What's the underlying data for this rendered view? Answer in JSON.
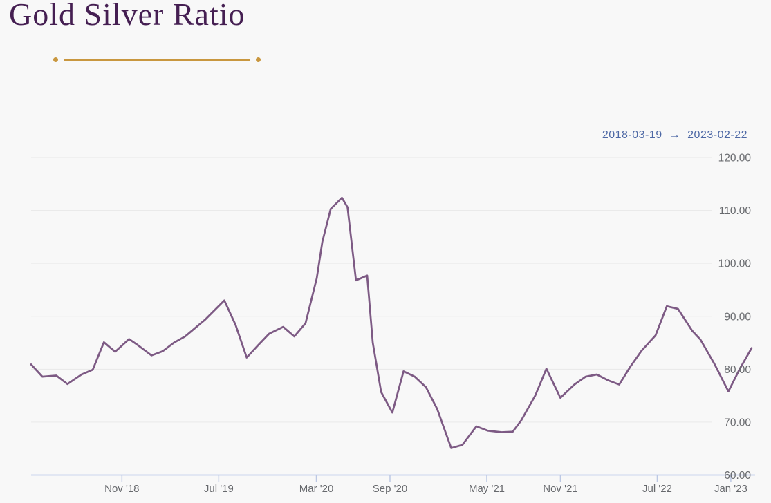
{
  "page": {
    "title": "Gold Silver Ratio"
  },
  "date_range": {
    "start": "2018-03-19",
    "arrow": "→",
    "end": "2023-02-22"
  },
  "colors": {
    "title": "#451f52",
    "divider_gold": "#c9973f",
    "date_blue": "#4d68a5",
    "line_purple": "#7d5a84",
    "grid": "#e9e9e9",
    "axis_blue": "#ccd6ee",
    "tick_blue": "#bcc8e4",
    "label_gray": "#67696d"
  },
  "chart_data": {
    "type": "line",
    "title": "Gold Silver Ratio",
    "xlabel": "",
    "ylabel": "",
    "ylim": [
      60,
      120
    ],
    "x_range": [
      "2018-03-19",
      "2023-02-22"
    ],
    "grid": "horizontal",
    "legend": "none",
    "y_ticks": [
      "120.00",
      "110.00",
      "100.00",
      "90.00",
      "80.00",
      "70.00",
      "60.00"
    ],
    "x_ticks": [
      {
        "label": "Nov '18",
        "date": "2018-11-01"
      },
      {
        "label": "Jul '19",
        "date": "2019-07-01"
      },
      {
        "label": "Mar '20",
        "date": "2020-03-01"
      },
      {
        "label": "Sep '20",
        "date": "2020-09-01"
      },
      {
        "label": "May '21",
        "date": "2021-05-01"
      },
      {
        "label": "Nov '21",
        "date": "2021-11-01"
      },
      {
        "label": "Jul '22",
        "date": "2022-07-01"
      },
      {
        "label": "Jan '23",
        "date": "2023-01-01"
      }
    ],
    "series": [
      {
        "name": "Gold Silver Ratio",
        "color": "#7d5a84",
        "points": [
          [
            "2018-03-19",
            80.9
          ],
          [
            "2018-04-16",
            78.6
          ],
          [
            "2018-05-21",
            78.8
          ],
          [
            "2018-06-18",
            77.2
          ],
          [
            "2018-07-23",
            79.0
          ],
          [
            "2018-08-20",
            79.9
          ],
          [
            "2018-09-17",
            85.1
          ],
          [
            "2018-10-15",
            83.3
          ],
          [
            "2018-11-19",
            85.7
          ],
          [
            "2018-12-10",
            84.6
          ],
          [
            "2019-01-14",
            82.6
          ],
          [
            "2019-02-11",
            83.4
          ],
          [
            "2019-03-11",
            85.0
          ],
          [
            "2019-04-08",
            86.2
          ],
          [
            "2019-05-27",
            89.3
          ],
          [
            "2019-07-15",
            93.0
          ],
          [
            "2019-08-12",
            88.4
          ],
          [
            "2019-09-09",
            82.2
          ],
          [
            "2019-10-07",
            84.5
          ],
          [
            "2019-11-04",
            86.7
          ],
          [
            "2019-12-09",
            88.0
          ],
          [
            "2020-01-06",
            86.2
          ],
          [
            "2020-02-03",
            88.7
          ],
          [
            "2020-03-02",
            97.2
          ],
          [
            "2020-03-16",
            104.1
          ],
          [
            "2020-04-06",
            110.3
          ],
          [
            "2020-05-04",
            112.4
          ],
          [
            "2020-05-18",
            110.6
          ],
          [
            "2020-06-08",
            96.8
          ],
          [
            "2020-07-06",
            97.7
          ],
          [
            "2020-07-20",
            85.0
          ],
          [
            "2020-08-10",
            75.7
          ],
          [
            "2020-09-07",
            71.8
          ],
          [
            "2020-10-05",
            79.6
          ],
          [
            "2020-11-02",
            78.6
          ],
          [
            "2020-11-30",
            76.6
          ],
          [
            "2020-12-28",
            72.5
          ],
          [
            "2021-02-01",
            65.1
          ],
          [
            "2021-03-01",
            65.7
          ],
          [
            "2021-04-05",
            69.2
          ],
          [
            "2021-05-03",
            68.4
          ],
          [
            "2021-06-07",
            68.1
          ],
          [
            "2021-07-05",
            68.2
          ],
          [
            "2021-07-26",
            70.3
          ],
          [
            "2021-08-30",
            75.0
          ],
          [
            "2021-09-27",
            80.1
          ],
          [
            "2021-11-01",
            74.6
          ],
          [
            "2021-12-06",
            77.1
          ],
          [
            "2022-01-03",
            78.6
          ],
          [
            "2022-01-31",
            79.0
          ],
          [
            "2022-02-28",
            77.9
          ],
          [
            "2022-03-28",
            77.1
          ],
          [
            "2022-04-25",
            80.5
          ],
          [
            "2022-05-23",
            83.5
          ],
          [
            "2022-06-27",
            86.4
          ],
          [
            "2022-07-25",
            91.9
          ],
          [
            "2022-08-22",
            91.4
          ],
          [
            "2022-09-26",
            87.3
          ],
          [
            "2022-10-17",
            85.6
          ],
          [
            "2022-11-21",
            81.0
          ],
          [
            "2022-12-26",
            75.8
          ],
          [
            "2023-01-23",
            80.0
          ],
          [
            "2023-02-22",
            84.0
          ]
        ]
      }
    ]
  }
}
